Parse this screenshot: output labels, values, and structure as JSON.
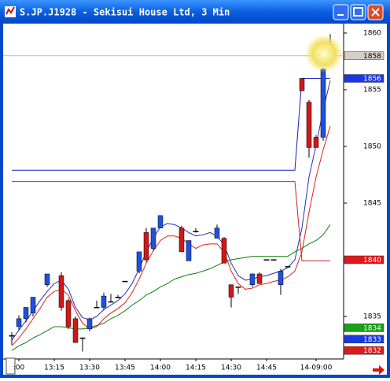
{
  "window": {
    "title": "S.JP.J1928 - Sekisui House Ltd, 3 Min"
  },
  "chart_data": {
    "type": "candlestick",
    "categories": [
      null,
      ":00",
      null,
      null,
      null,
      null,
      "13:15",
      null,
      null,
      null,
      null,
      "13:30",
      null,
      null,
      null,
      null,
      "13:45",
      null,
      null,
      null,
      null,
      "14:00",
      null,
      null,
      null,
      null,
      "14:15",
      null,
      null,
      null,
      null,
      "14:30",
      null,
      null,
      null,
      null,
      "14:45",
      null,
      null,
      null,
      null,
      null,
      null,
      "14-09:00",
      null,
      null
    ],
    "open": [
      1833.3,
      1834.1,
      1834.8,
      1835.3,
      null,
      1837.8,
      null,
      1838.6,
      1836.4,
      1834.8,
      1833.1,
      1833.9,
      1835.8,
      1835.8,
      1836.3,
      1836.7,
      1838.1,
      null,
      1839.0,
      1842.4,
      1841.0,
      1842.8,
      null,
      null,
      1842.8,
      1839.9,
      1842.5,
      null,
      null,
      1841.9,
      1841.9,
      1837.8,
      1837.6,
      null,
      1837.8,
      1838.75,
      1840.0,
      1840.0,
      1837.8,
      1839.4,
      null,
      1856.0,
      1853.9,
      1850.8,
      1850.8,
      1858.1
    ],
    "high": [
      1833.6,
      1835.1,
      1835.8,
      1836.7,
      null,
      1838.75,
      null,
      1838.9,
      1836.6,
      1835.0,
      1833.1,
      1834.9,
      1836.4,
      1837.1,
      1837.0,
      1836.9,
      1838.1,
      null,
      1840.7,
      1842.8,
      1842.8,
      1843.9,
      null,
      null,
      1843.0,
      1841.7,
      1842.8,
      null,
      null,
      1843.1,
      1842.0,
      1837.8,
      1837.6,
      null,
      1838.8,
      1838.9,
      1840.0,
      1840.0,
      1839.2,
      1839.4,
      null,
      1856.0,
      1854.1,
      1851.0,
      1856.9,
      1859.9
    ],
    "low": [
      1832.5,
      1833.8,
      1834.5,
      1835.0,
      null,
      1837.6,
      null,
      1835.5,
      1833.9,
      1832.7,
      1831.9,
      1833.7,
      1835.8,
      1835.6,
      1836.3,
      1836.6,
      1838.1,
      null,
      1838.8,
      1839.8,
      1840.8,
      1842.8,
      null,
      null,
      1840.7,
      1839.9,
      1842.4,
      null,
      null,
      1841.9,
      1839.7,
      1835.8,
      1837.0,
      null,
      1837.6,
      1837.9,
      1840.0,
      1840.0,
      1836.9,
      1839.4,
      null,
      1854.9,
      1849.0,
      1849.9,
      1850.5,
      1858.1
    ],
    "close": [
      1833.3,
      1834.8,
      1835.8,
      1836.7,
      null,
      1838.75,
      null,
      1835.8,
      1834.1,
      1832.7,
      1833.1,
      1834.8,
      1835.8,
      1836.8,
      1836.3,
      1836.7,
      1838.1,
      null,
      1840.7,
      1840.0,
      1842.8,
      1843.9,
      null,
      null,
      1840.7,
      1841.7,
      1842.5,
      null,
      null,
      1842.8,
      1839.7,
      1836.7,
      1837.6,
      null,
      1838.75,
      1837.9,
      1840.0,
      1840.0,
      1839.0,
      1839.4,
      null,
      1854.9,
      1849.9,
      1849.9,
      1856.8,
      1859.0
    ],
    "up_color": "#2050e0",
    "down_color": "#d01818",
    "series": [
      {
        "color": "#2030b0",
        "values": [
          1832.9,
          1833.8,
          1834.6,
          1835.5,
          1836.4,
          1837.2,
          1837.9,
          1838.2,
          1837.4,
          1835.8,
          1834.9,
          1834.7,
          1835.0,
          1835.6,
          1836.0,
          1836.4,
          1837.0,
          1837.9,
          1839.2,
          1840.7,
          1841.9,
          1842.9,
          1843.2,
          1843.1,
          1842.8,
          1842.4,
          1842.1,
          1842.2,
          1842.4,
          1842.1,
          1841.3,
          1839.7,
          1838.6,
          1838.2,
          1838.3,
          1838.5,
          1838.6,
          1838.8,
          1839.0,
          1839.3,
          1840.0,
          1842.8,
          1847.3,
          1850.1,
          1853.2,
          1855.8
        ]
      },
      {
        "color": "#e02020",
        "values": [
          1832.4,
          1833.1,
          1833.9,
          1834.8,
          1835.7,
          1836.7,
          1837.2,
          1837.4,
          1836.9,
          1835.5,
          1834.4,
          1833.9,
          1834.1,
          1834.8,
          1835.3,
          1835.7,
          1836.2,
          1837.1,
          1838.3,
          1839.7,
          1840.8,
          1841.7,
          1842.1,
          1842.1,
          1841.9,
          1841.4,
          1841.0,
          1841.3,
          1841.4,
          1841.4,
          1840.7,
          1839.0,
          1837.9,
          1837.4,
          1837.5,
          1837.8,
          1837.9,
          1838.1,
          1838.2,
          1838.5,
          1839.0,
          1840.7,
          1844.2,
          1847.3,
          1849.7,
          1851.8
        ]
      },
      {
        "color": "#108010",
        "values": [
          1832.0,
          1832.4,
          1832.7,
          1833.1,
          1833.4,
          1833.75,
          1834.1,
          1834.1,
          1834.0,
          1833.9,
          1833.9,
          1834.0,
          1834.2,
          1834.4,
          1834.8,
          1835.1,
          1835.5,
          1836.0,
          1836.4,
          1836.9,
          1837.2,
          1837.6,
          1837.9,
          1838.3,
          1838.5,
          1838.7,
          1838.8,
          1839.0,
          1839.2,
          1839.5,
          1839.8,
          1840.0,
          1840.1,
          1840.2,
          1840.3,
          1840.3,
          1840.3,
          1840.3,
          1840.3,
          1840.3,
          1840.7,
          1841.0,
          1841.4,
          1841.7,
          1842.2,
          1843.1
        ]
      },
      {
        "color": "#1020c0",
        "values": [
          1847.9,
          1847.9,
          1847.9,
          1847.9,
          1847.9,
          1847.9,
          1847.9,
          1847.9,
          1847.9,
          1847.9,
          1847.9,
          1847.9,
          1847.9,
          1847.9,
          1847.9,
          1847.9,
          1847.9,
          1847.9,
          1847.9,
          1847.9,
          1847.9,
          1847.9,
          1847.9,
          1847.9,
          1847.9,
          1847.9,
          1847.9,
          1847.9,
          1847.9,
          1847.9,
          1847.9,
          1847.9,
          1847.9,
          1847.9,
          1847.9,
          1847.9,
          1847.9,
          1847.9,
          1847.9,
          1847.9,
          1847.9,
          1856.0,
          1856.0,
          1856.0,
          1856.0,
          1856.0
        ]
      },
      {
        "color": "#d02020",
        "values": [
          1846.9,
          1846.9,
          1846.9,
          1846.9,
          1846.9,
          1846.9,
          1846.9,
          1846.9,
          1846.9,
          1846.9,
          1846.9,
          1846.9,
          1846.9,
          1846.9,
          1846.9,
          1846.9,
          1846.9,
          1846.9,
          1846.9,
          1846.9,
          1846.9,
          1846.9,
          1846.9,
          1846.9,
          1846.9,
          1846.9,
          1846.9,
          1846.9,
          1846.9,
          1846.9,
          1846.9,
          1846.9,
          1846.9,
          1846.9,
          1846.9,
          1846.9,
          1846.9,
          1846.9,
          1846.9,
          1846.9,
          1846.9,
          1839.9,
          1839.9,
          1839.9,
          1839.9,
          1839.9
        ]
      }
    ],
    "reference_line": 1858,
    "price_tags": [
      {
        "value": 1858,
        "color": "#d4d0c8"
      },
      {
        "value": 1856,
        "color": "#1838e8"
      },
      {
        "value": 1840,
        "color": "#e01818"
      },
      {
        "value": 1834,
        "color": "#18a018"
      },
      {
        "value": 1833,
        "color": "#1838e8"
      },
      {
        "value": 1832,
        "color": "#e01818"
      }
    ],
    "ylim": [
      1831.32,
      1860.83
    ],
    "yticks": [
      1835,
      1840,
      1845,
      1850,
      1855,
      1860
    ]
  }
}
